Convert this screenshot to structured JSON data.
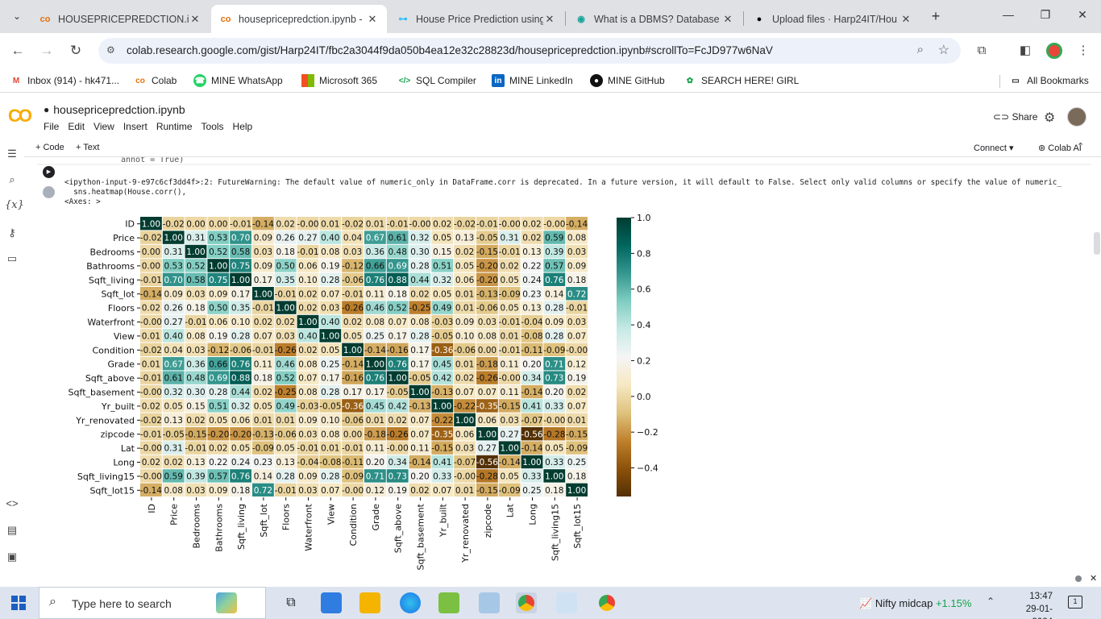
{
  "browser": {
    "tabs": [
      {
        "title": "HOUSEPRICEPREDCTION.ipy",
        "favicon": "colab-icon",
        "active": false
      },
      {
        "title": "housepricepredction.ipynb - ",
        "favicon": "colab-icon",
        "active": true
      },
      {
        "title": "House Price Prediction using",
        "favicon": "kaggle-icon",
        "active": false
      },
      {
        "title": "What is a DBMS? Database M",
        "favicon": "web-icon",
        "active": false
      },
      {
        "title": "Upload files · Harp24IT/Hou",
        "favicon": "github-icon",
        "active": false
      }
    ],
    "url": "colab.research.google.com/gist/Harp24IT/fbc2a3044f9da050b4ea12e32c28823d/housepricepredction.ipynb#scrollTo=FcJD977w6NaV",
    "bookmarks": [
      {
        "label": "Inbox (914) - hk471...",
        "icon": "gmail-icon"
      },
      {
        "label": "Colab",
        "icon": "colab-icon"
      },
      {
        "label": "MINE WhatsApp",
        "icon": "whatsapp-icon"
      },
      {
        "label": "Microsoft 365",
        "icon": "microsoft-icon"
      },
      {
        "label": "SQL Compiler",
        "icon": "code-icon"
      },
      {
        "label": "MINE  LinkedIn",
        "icon": "linkedin-icon"
      },
      {
        "label": "MINE GitHub",
        "icon": "github-icon"
      },
      {
        "label": "SEARCH HERE!  GIRL",
        "icon": "search-bookmark-icon"
      }
    ],
    "all_bookmarks": "All Bookmarks"
  },
  "colab": {
    "notebook_title": "housepricepredction.ipynb",
    "menus": [
      "File",
      "Edit",
      "View",
      "Insert",
      "Runtime",
      "Tools",
      "Help"
    ],
    "share": "Share",
    "add_code": "+ Code",
    "add_text": "+ Text",
    "connect": "Connect",
    "colab_ai": "Colab AI",
    "code_tail": "annot = True)",
    "warning_lines": [
      "<ipython-input-9-e97c6cf3dd4f>:2: FutureWarning: The default value of numeric_only in DataFrame.corr is deprecated. In a future version, it will default to False. Select only valid columns or specify the value of numeric_",
      "  sns.heatmap(House.corr(),",
      "<Axes: >"
    ]
  },
  "chart_data": {
    "type": "heatmap",
    "title": "",
    "labels": [
      "ID",
      "Price",
      "Bedrooms",
      "Bathrooms",
      "Sqft_living",
      "Sqft_lot",
      "Floors",
      "Waterfront",
      "View",
      "Condition",
      "Grade",
      "Sqft_above",
      "Sqft_basement",
      "Yr_built",
      "Yr_renovated",
      "zipcode",
      "Lat",
      "Long",
      "Sqft_living15",
      "Sqft_lot15"
    ],
    "matrix": [
      [
        1.0,
        -0.02,
        0.0,
        0.0,
        -0.01,
        -0.14,
        0.02,
        -0.0,
        0.01,
        -0.02,
        0.01,
        -0.01,
        -0.0,
        0.02,
        -0.02,
        -0.01,
        -0.0,
        0.02,
        -0.0,
        -0.14
      ],
      [
        -0.02,
        1.0,
        0.31,
        0.53,
        0.7,
        0.09,
        0.26,
        0.27,
        0.4,
        0.04,
        0.67,
        0.61,
        0.32,
        0.05,
        0.13,
        -0.05,
        0.31,
        0.02,
        0.59,
        0.08
      ],
      [
        0.0,
        0.31,
        1.0,
        0.52,
        0.58,
        0.03,
        0.18,
        -0.01,
        0.08,
        0.03,
        0.36,
        0.48,
        0.3,
        0.15,
        0.02,
        -0.15,
        -0.01,
        0.13,
        0.39,
        0.03
      ],
      [
        0.0,
        0.53,
        0.52,
        1.0,
        0.75,
        0.09,
        0.5,
        0.06,
        0.19,
        -0.12,
        0.66,
        0.69,
        0.28,
        0.51,
        0.05,
        -0.2,
        0.02,
        0.22,
        0.57,
        0.09
      ],
      [
        -0.01,
        0.7,
        0.58,
        0.75,
        1.0,
        0.17,
        0.35,
        0.1,
        0.28,
        -0.06,
        0.76,
        0.88,
        0.44,
        0.32,
        0.06,
        -0.2,
        0.05,
        0.24,
        0.76,
        0.18
      ],
      [
        -0.14,
        0.09,
        0.03,
        0.09,
        0.17,
        1.0,
        -0.01,
        0.02,
        0.07,
        -0.01,
        0.11,
        0.18,
        0.02,
        0.05,
        0.01,
        -0.13,
        -0.09,
        0.23,
        0.14,
        0.72
      ],
      [
        0.02,
        0.26,
        0.18,
        0.5,
        0.35,
        -0.01,
        1.0,
        0.02,
        0.03,
        -0.26,
        0.46,
        0.52,
        -0.25,
        0.49,
        0.01,
        -0.06,
        0.05,
        0.13,
        0.28,
        -0.01
      ],
      [
        -0.0,
        0.27,
        -0.01,
        0.06,
        0.1,
        0.02,
        0.02,
        1.0,
        0.4,
        0.02,
        0.08,
        0.07,
        0.08,
        -0.03,
        0.09,
        0.03,
        -0.01,
        -0.04,
        0.09,
        0.03
      ],
      [
        0.01,
        0.4,
        0.08,
        0.19,
        0.28,
        0.07,
        0.03,
        0.4,
        1.0,
        0.05,
        0.25,
        0.17,
        0.28,
        -0.05,
        0.1,
        0.08,
        0.01,
        -0.08,
        0.28,
        0.07
      ],
      [
        -0.02,
        0.04,
        0.03,
        -0.12,
        -0.06,
        -0.01,
        -0.26,
        0.02,
        0.05,
        1.0,
        -0.14,
        -0.16,
        0.17,
        -0.36,
        -0.06,
        0.0,
        -0.01,
        -0.11,
        -0.09,
        -0.0
      ],
      [
        0.01,
        0.67,
        0.36,
        0.66,
        0.76,
        0.11,
        0.46,
        0.08,
        0.25,
        -0.14,
        1.0,
        0.76,
        0.17,
        0.45,
        0.01,
        -0.18,
        0.11,
        0.2,
        0.71,
        0.12
      ],
      [
        -0.01,
        0.61,
        0.48,
        0.69,
        0.88,
        0.18,
        0.52,
        0.07,
        0.17,
        -0.16,
        0.76,
        1.0,
        -0.05,
        0.42,
        0.02,
        -0.26,
        -0.0,
        0.34,
        0.73,
        0.19
      ],
      [
        -0.0,
        0.32,
        0.3,
        0.28,
        0.44,
        0.02,
        -0.25,
        0.08,
        0.28,
        0.17,
        0.17,
        -0.05,
        1.0,
        -0.13,
        0.07,
        0.07,
        0.11,
        -0.14,
        0.2,
        0.02
      ],
      [
        0.02,
        0.05,
        0.15,
        0.51,
        0.32,
        0.05,
        0.49,
        -0.03,
        -0.05,
        -0.36,
        0.45,
        0.42,
        -0.13,
        1.0,
        -0.22,
        -0.35,
        -0.15,
        0.41,
        0.33,
        0.07
      ],
      [
        -0.02,
        0.13,
        0.02,
        0.05,
        0.06,
        0.01,
        0.01,
        0.09,
        0.1,
        -0.06,
        0.01,
        0.02,
        0.07,
        -0.22,
        1.0,
        0.06,
        0.03,
        -0.07,
        -0.0,
        0.01
      ],
      [
        -0.01,
        -0.05,
        -0.15,
        -0.2,
        -0.2,
        -0.13,
        -0.06,
        0.03,
        0.08,
        0.0,
        -0.18,
        -0.26,
        0.07,
        -0.35,
        0.06,
        1.0,
        0.27,
        -0.56,
        -0.28,
        -0.15
      ],
      [
        -0.0,
        0.31,
        -0.01,
        0.02,
        0.05,
        -0.09,
        0.05,
        -0.01,
        0.01,
        -0.01,
        0.11,
        -0.0,
        0.11,
        -0.15,
        0.03,
        0.27,
        1.0,
        -0.14,
        0.05,
        -0.09
      ],
      [
        0.02,
        0.02,
        0.13,
        0.22,
        0.24,
        0.23,
        0.13,
        -0.04,
        -0.08,
        -0.11,
        0.2,
        0.34,
        -0.14,
        0.41,
        -0.07,
        -0.56,
        -0.14,
        1.0,
        0.33,
        0.25
      ],
      [
        -0.0,
        0.59,
        0.39,
        0.57,
        0.76,
        0.14,
        0.28,
        0.09,
        0.28,
        -0.09,
        0.71,
        0.73,
        0.2,
        0.33,
        -0.0,
        -0.28,
        0.05,
        0.33,
        1.0,
        0.18
      ],
      [
        -0.14,
        0.08,
        0.03,
        0.09,
        0.18,
        0.72,
        -0.01,
        0.03,
        0.07,
        -0.0,
        0.12,
        0.19,
        0.02,
        0.07,
        0.01,
        -0.15,
        -0.09,
        0.25,
        0.18,
        1.0
      ]
    ],
    "vmin": -0.56,
    "vmax": 1.0,
    "colormap": "BrBG",
    "colorbar_ticks": [
      1.0,
      0.8,
      0.6,
      0.4,
      0.2,
      0.0,
      -0.2,
      -0.4
    ],
    "colorbar_tick_labels": [
      "1.0",
      "0.8",
      "0.6",
      "0.4",
      "0.2",
      "0.0",
      "−0.2",
      "−0.4"
    ],
    "annot": true
  },
  "taskbar": {
    "search_placeholder": "Type here to search",
    "ticker_name": "Nifty midcap",
    "ticker_change": "+1.15%",
    "time": "13:47",
    "date": "29-01-2024",
    "notifications": "1"
  }
}
